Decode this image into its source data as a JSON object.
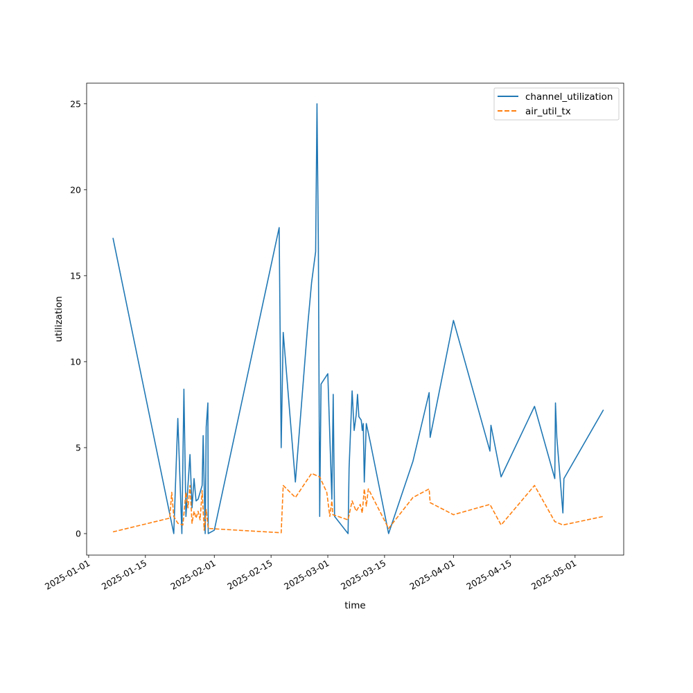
{
  "chart_data": {
    "type": "line",
    "title": "",
    "xlabel": "time",
    "ylabel": "utilization",
    "x_type": "date",
    "xlim": [
      "2024-12-31T12:00",
      "2025-05-13T00:00"
    ],
    "ylim": [
      -1.25,
      26.2
    ],
    "x_ticks": [
      "2025-01-01",
      "2025-01-15",
      "2025-02-01",
      "2025-02-15",
      "2025-03-01",
      "2025-03-15",
      "2025-04-01",
      "2025-04-15",
      "2025-05-01"
    ],
    "x_tick_labels": [
      "2025-01-01",
      "2025-01-15",
      "2025-02-01",
      "2025-02-15",
      "2025-03-01",
      "2025-03-15",
      "2025-04-01",
      "2025-04-15",
      "2025-05-01"
    ],
    "y_ticks": [
      0,
      5,
      10,
      15,
      20,
      25
    ],
    "y_tick_labels": [
      "0",
      "5",
      "10",
      "15",
      "20",
      "25"
    ],
    "grid": false,
    "legend_position": "top-right",
    "series": [
      {
        "name": "channel_utilization",
        "color": "#1f77b4",
        "style": "solid",
        "points": [
          [
            "2025-01-07",
            17.2
          ],
          [
            "2025-01-22",
            0.0
          ],
          [
            "2025-01-23",
            6.7
          ],
          [
            "2025-01-24",
            0.0
          ],
          [
            "2025-01-24T12:00",
            8.4
          ],
          [
            "2025-01-25",
            1.0
          ],
          [
            "2025-01-26",
            4.6
          ],
          [
            "2025-01-26T12:00",
            1.5
          ],
          [
            "2025-01-27",
            3.2
          ],
          [
            "2025-01-27T12:00",
            1.9
          ],
          [
            "2025-01-28",
            2.0
          ],
          [
            "2025-01-29",
            2.8
          ],
          [
            "2025-01-29T06:00",
            5.7
          ],
          [
            "2025-01-29T18:00",
            0.0
          ],
          [
            "2025-01-30",
            6.2
          ],
          [
            "2025-01-30T10:00",
            7.6
          ],
          [
            "2025-01-30T12:00",
            0.0
          ],
          [
            "2025-02-01",
            0.2
          ],
          [
            "2025-02-17",
            17.8
          ],
          [
            "2025-02-17T12:00",
            5.0
          ],
          [
            "2025-02-18",
            11.7
          ],
          [
            "2025-02-21",
            3.0
          ],
          [
            "2025-02-24",
            12.0
          ],
          [
            "2025-02-25",
            14.6
          ],
          [
            "2025-02-26",
            16.4
          ],
          [
            "2025-02-26T08:00",
            25.0
          ],
          [
            "2025-02-26T16:00",
            17.0
          ],
          [
            "2025-02-27",
            1.0
          ],
          [
            "2025-02-27T08:00",
            8.7
          ],
          [
            "2025-03-01",
            9.3
          ],
          [
            "2025-03-02",
            2.0
          ],
          [
            "2025-03-02T08:00",
            8.1
          ],
          [
            "2025-03-02T16:00",
            1.0
          ],
          [
            "2025-03-06",
            0.0
          ],
          [
            "2025-03-06T06:00",
            3.8
          ],
          [
            "2025-03-07",
            8.3
          ],
          [
            "2025-03-07T12:00",
            6.0
          ],
          [
            "2025-03-08",
            6.9
          ],
          [
            "2025-03-08T08:00",
            8.1
          ],
          [
            "2025-03-08T16:00",
            6.8
          ],
          [
            "2025-03-09T06:00",
            6.6
          ],
          [
            "2025-03-09T12:00",
            6.0
          ],
          [
            "2025-03-09T18:00",
            6.4
          ],
          [
            "2025-03-10",
            3.0
          ],
          [
            "2025-03-10T12:00",
            6.4
          ],
          [
            "2025-03-11T12:00",
            5.3
          ],
          [
            "2025-03-16",
            0.0
          ],
          [
            "2025-03-22",
            4.2
          ],
          [
            "2025-03-26",
            8.2
          ],
          [
            "2025-03-26T06:00",
            5.6
          ],
          [
            "2025-04-01",
            12.4
          ],
          [
            "2025-04-10",
            4.8
          ],
          [
            "2025-04-10T06:00",
            6.3
          ],
          [
            "2025-04-12T18:00",
            3.3
          ],
          [
            "2025-04-21",
            7.4
          ],
          [
            "2025-04-26",
            3.2
          ],
          [
            "2025-04-26T04:00",
            7.6
          ],
          [
            "2025-04-26T12:00",
            5.6
          ],
          [
            "2025-04-28",
            1.2
          ],
          [
            "2025-04-28T06:00",
            3.2
          ],
          [
            "2025-05-08",
            7.2
          ]
        ]
      },
      {
        "name": "air_util_tx",
        "color": "#ff7f0e",
        "style": "dashed",
        "points": [
          [
            "2025-01-07",
            0.1
          ],
          [
            "2025-01-21",
            0.9
          ],
          [
            "2025-01-21T12:00",
            2.4
          ],
          [
            "2025-01-22",
            1.0
          ],
          [
            "2025-01-23",
            0.6
          ],
          [
            "2025-01-24T06:00",
            0.5
          ],
          [
            "2025-01-25",
            2.4
          ],
          [
            "2025-01-25T12:00",
            1.5
          ],
          [
            "2025-01-26",
            2.8
          ],
          [
            "2025-01-26T12:00",
            0.6
          ],
          [
            "2025-01-27",
            1.3
          ],
          [
            "2025-01-27T12:00",
            0.9
          ],
          [
            "2025-01-28",
            1.3
          ],
          [
            "2025-01-28T12:00",
            0.8
          ],
          [
            "2025-01-29",
            2.5
          ],
          [
            "2025-01-29T12:00",
            0.2
          ],
          [
            "2025-01-30",
            1.4
          ],
          [
            "2025-01-30T12:00",
            0.3
          ],
          [
            "2025-02-17T12:00",
            0.05
          ],
          [
            "2025-02-18",
            2.8
          ],
          [
            "2025-02-21",
            2.1
          ],
          [
            "2025-02-25",
            3.5
          ],
          [
            "2025-02-27",
            3.3
          ],
          [
            "2025-02-28T18:00",
            2.4
          ],
          [
            "2025-03-01T12:00",
            1.0
          ],
          [
            "2025-03-02",
            1.9
          ],
          [
            "2025-03-02T06:00",
            1.1
          ],
          [
            "2025-03-06",
            0.8
          ],
          [
            "2025-03-07",
            1.9
          ],
          [
            "2025-03-08",
            1.3
          ],
          [
            "2025-03-09",
            1.7
          ],
          [
            "2025-03-09T12:00",
            1.2
          ],
          [
            "2025-03-10",
            2.6
          ],
          [
            "2025-03-10T12:00",
            1.6
          ],
          [
            "2025-03-11",
            2.6
          ],
          [
            "2025-03-16",
            0.3
          ],
          [
            "2025-03-22",
            2.1
          ],
          [
            "2025-03-26",
            2.6
          ],
          [
            "2025-03-26T06:00",
            1.8
          ],
          [
            "2025-04-01",
            1.1
          ],
          [
            "2025-04-10",
            1.7
          ],
          [
            "2025-04-12T18:00",
            0.5
          ],
          [
            "2025-04-21",
            2.8
          ],
          [
            "2025-04-26",
            0.7
          ],
          [
            "2025-04-28",
            0.5
          ],
          [
            "2025-05-08",
            1.0
          ]
        ]
      }
    ]
  }
}
